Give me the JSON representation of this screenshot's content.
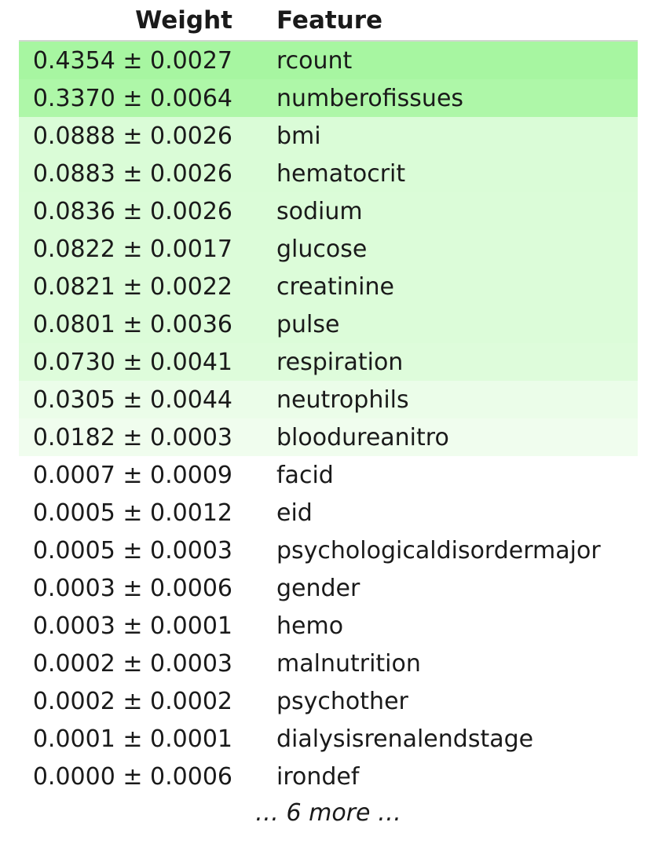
{
  "header": {
    "weight_label": "Weight",
    "feature_label": "Feature"
  },
  "colors": {
    "strong": "#a6f4a0",
    "medium": "#dafcd7",
    "light": "#e9fde7",
    "lightest": "#f1fef0",
    "none": "#ffffff"
  },
  "rows": [
    {
      "weight": "0.4354 ± 0.0027",
      "feature": "rcount",
      "bg": "#a7f6a1"
    },
    {
      "weight": "0.3370 ± 0.0064",
      "feature": "numberofissues",
      "bg": "#aef7a8"
    },
    {
      "weight": "0.0888 ± 0.0026",
      "feature": "bmi",
      "bg": "#dafcd7"
    },
    {
      "weight": "0.0883 ± 0.0026",
      "feature": "hematocrit",
      "bg": "#dafcd7"
    },
    {
      "weight": "0.0836 ± 0.0026",
      "feature": "sodium",
      "bg": "#dbfcd8"
    },
    {
      "weight": "0.0822 ± 0.0017",
      "feature": "glucose",
      "bg": "#dcfcd9"
    },
    {
      "weight": "0.0821 ± 0.0022",
      "feature": "creatinine",
      "bg": "#dcfcd9"
    },
    {
      "weight": "0.0801 ± 0.0036",
      "feature": "pulse",
      "bg": "#dcfcd9"
    },
    {
      "weight": "0.0730 ± 0.0041",
      "feature": "respiration",
      "bg": "#defcdb"
    },
    {
      "weight": "0.0305 ± 0.0044",
      "feature": "neutrophils",
      "bg": "#ebfde9"
    },
    {
      "weight": "0.0182 ± 0.0003",
      "feature": "bloodureanitro",
      "bg": "#f0fdee"
    },
    {
      "weight": "0.0007 ± 0.0009",
      "feature": "facid",
      "bg": "#ffffff"
    },
    {
      "weight": "0.0005 ± 0.0012",
      "feature": "eid",
      "bg": "#ffffff"
    },
    {
      "weight": "0.0005 ± 0.0003",
      "feature": "psychologicaldisordermajor",
      "bg": "#ffffff"
    },
    {
      "weight": "0.0003 ± 0.0006",
      "feature": "gender",
      "bg": "#ffffff"
    },
    {
      "weight": "0.0003 ± 0.0001",
      "feature": "hemo",
      "bg": "#ffffff"
    },
    {
      "weight": "0.0002 ± 0.0003",
      "feature": "malnutrition",
      "bg": "#ffffff"
    },
    {
      "weight": "0.0002 ± 0.0002",
      "feature": "psychother",
      "bg": "#ffffff"
    },
    {
      "weight": "0.0001 ± 0.0001",
      "feature": "dialysisrenalendstage",
      "bg": "#ffffff"
    },
    {
      "weight": "0.0000 ± 0.0006",
      "feature": "irondef",
      "bg": "#ffffff"
    }
  ],
  "footer": {
    "more_label": "… 6 more …"
  }
}
